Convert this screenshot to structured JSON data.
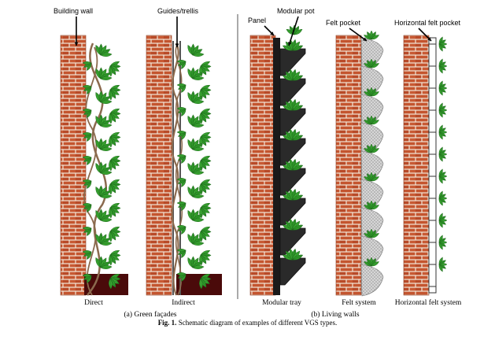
{
  "figure": {
    "caption_prefix": "Fig. 1.",
    "caption_text": "Schematic diagram of examples of different VGS types."
  },
  "groups": {
    "green_facades": "(a) Green façades",
    "living_walls": "(b) Living walls"
  },
  "annotations": {
    "building_wall": "Building wall",
    "guides_trellis": "Guides/trellis",
    "panel": "Panel",
    "modular_pot": "Modular pot",
    "felt_pocket": "Felt pocket",
    "horizontal_felt_pocket": "Horizontal felt pocket"
  },
  "systems": [
    {
      "id": "direct",
      "caption": "Direct"
    },
    {
      "id": "indirect",
      "caption": "Indirect"
    },
    {
      "id": "modular_tray",
      "caption": "Modular tray"
    },
    {
      "id": "felt_system",
      "caption": "Felt system"
    },
    {
      "id": "horizontal_felt_system",
      "caption": "Horizontal felt system"
    }
  ],
  "colors": {
    "brick": "#c4552f",
    "mortar": "#f2e6d8",
    "leaf": "#2f9a2a",
    "leaf_dark": "#1f6a1c",
    "stem": "#8b6a4e",
    "soil": "#4a0a0a",
    "panel": "#1a1a1a",
    "felt": "#cfcfcf"
  }
}
